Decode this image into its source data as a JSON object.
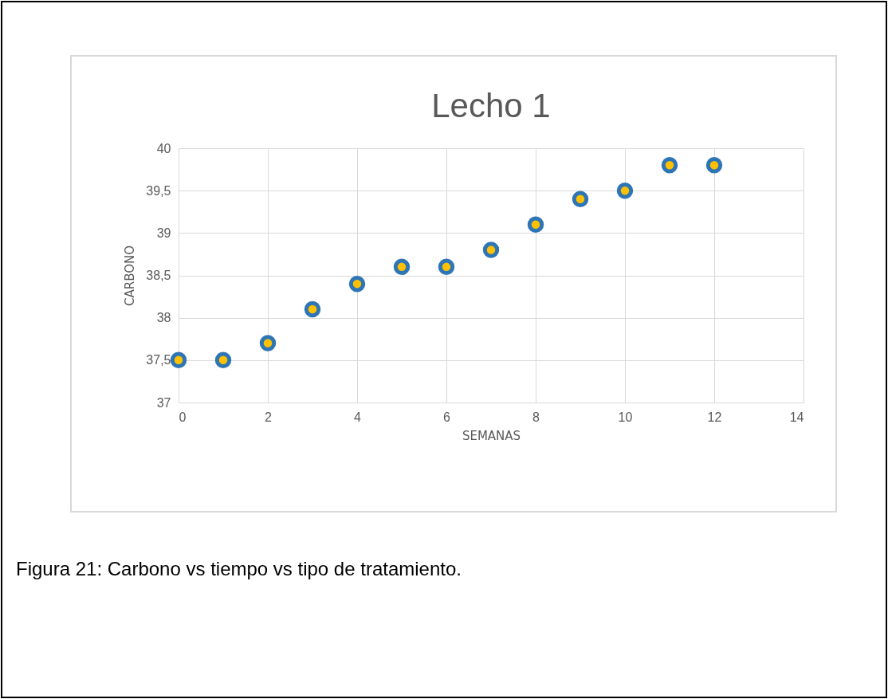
{
  "chart_data": {
    "type": "scatter",
    "title": "Lecho 1",
    "xlabel": "SEMANAS",
    "ylabel": "CARBONO",
    "x": [
      0,
      1,
      2,
      3,
      4,
      5,
      6,
      7,
      8,
      9,
      10,
      11,
      12
    ],
    "series": [
      {
        "color": "#2e75b6",
        "values": [
          37.5,
          37.5,
          37.7,
          38.1,
          38.4,
          38.6,
          38.6,
          38.8,
          39.1,
          39.4,
          39.5,
          39.8,
          39.8
        ]
      }
    ],
    "xlim": [
      0,
      14
    ],
    "xticks": [
      0,
      2,
      4,
      6,
      8,
      10,
      12,
      14
    ],
    "ylim": [
      37,
      40
    ],
    "yticks": [
      37,
      {
        "value": 37.5,
        "label": "37,5"
      },
      38,
      {
        "value": 38.5,
        "label": "38,5"
      },
      39,
      {
        "value": 39.5,
        "label": "39,5"
      },
      40
    ],
    "grid": true,
    "marker": "circle",
    "annotations": [
      "Figura 21: Carbono vs tiempo vs tipo de tratamiento."
    ]
  }
}
